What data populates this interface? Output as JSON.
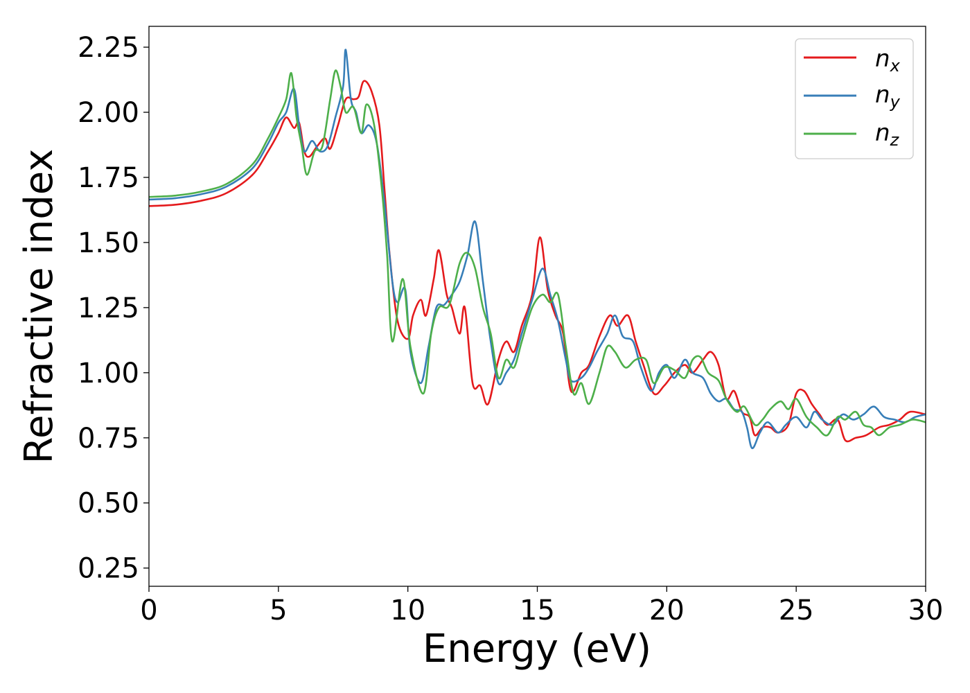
{
  "chart_data": {
    "type": "line",
    "title": "",
    "xlabel": "Energy (eV)",
    "ylabel": "Refractive index",
    "xlim": [
      0,
      30
    ],
    "ylim": [
      0.18,
      2.33
    ],
    "xticks": [
      0,
      5,
      10,
      15,
      20,
      25,
      30
    ],
    "xtick_labels": [
      "0",
      "5",
      "10",
      "15",
      "20",
      "25",
      "30"
    ],
    "yticks": [
      0.25,
      0.5,
      0.75,
      1.0,
      1.25,
      1.5,
      1.75,
      2.0,
      2.25
    ],
    "ytick_labels": [
      "0.25",
      "0.50",
      "0.75",
      "1.00",
      "1.25",
      "1.50",
      "1.75",
      "2.00",
      "2.25"
    ],
    "grid": false,
    "legend_position": "top-right",
    "series": [
      {
        "name": "n",
        "subscript": "x",
        "color": "#e41a1c",
        "points": [
          [
            0,
            1.64
          ],
          [
            1,
            1.645
          ],
          [
            2,
            1.66
          ],
          [
            3,
            1.69
          ],
          [
            4,
            1.76
          ],
          [
            4.6,
            1.85
          ],
          [
            5,
            1.92
          ],
          [
            5.3,
            1.98
          ],
          [
            5.6,
            1.94
          ],
          [
            5.8,
            1.96
          ],
          [
            6.0,
            1.85
          ],
          [
            6.2,
            1.83
          ],
          [
            6.5,
            1.87
          ],
          [
            6.8,
            1.9
          ],
          [
            7.0,
            1.86
          ],
          [
            7.3,
            1.95
          ],
          [
            7.6,
            2.05
          ],
          [
            7.9,
            2.05
          ],
          [
            8.1,
            2.06
          ],
          [
            8.3,
            2.12
          ],
          [
            8.6,
            2.08
          ],
          [
            8.9,
            1.95
          ],
          [
            9.1,
            1.7
          ],
          [
            9.3,
            1.45
          ],
          [
            9.6,
            1.2
          ],
          [
            10.0,
            1.13
          ],
          [
            10.2,
            1.22
          ],
          [
            10.5,
            1.28
          ],
          [
            10.7,
            1.22
          ],
          [
            11.0,
            1.36
          ],
          [
            11.2,
            1.47
          ],
          [
            11.5,
            1.3
          ],
          [
            11.7,
            1.25
          ],
          [
            12.0,
            1.15
          ],
          [
            12.2,
            1.25
          ],
          [
            12.5,
            0.96
          ],
          [
            12.8,
            0.95
          ],
          [
            13.1,
            0.88
          ],
          [
            13.5,
            1.05
          ],
          [
            13.8,
            1.12
          ],
          [
            14.1,
            1.08
          ],
          [
            14.4,
            1.18
          ],
          [
            14.8,
            1.3
          ],
          [
            15.1,
            1.52
          ],
          [
            15.4,
            1.32
          ],
          [
            15.7,
            1.22
          ],
          [
            16.0,
            1.15
          ],
          [
            16.3,
            0.93
          ],
          [
            16.7,
            1.0
          ],
          [
            17.0,
            1.03
          ],
          [
            17.4,
            1.14
          ],
          [
            17.8,
            1.22
          ],
          [
            18.1,
            1.18
          ],
          [
            18.5,
            1.22
          ],
          [
            18.8,
            1.12
          ],
          [
            19.1,
            1.03
          ],
          [
            19.5,
            0.92
          ],
          [
            19.9,
            0.95
          ],
          [
            20.3,
            1.0
          ],
          [
            20.7,
            1.03
          ],
          [
            21.0,
            1.0
          ],
          [
            21.4,
            1.05
          ],
          [
            21.7,
            1.08
          ],
          [
            22.0,
            1.03
          ],
          [
            22.3,
            0.9
          ],
          [
            22.6,
            0.93
          ],
          [
            22.9,
            0.85
          ],
          [
            23.2,
            0.83
          ],
          [
            23.4,
            0.76
          ],
          [
            23.7,
            0.79
          ],
          [
            24.0,
            0.79
          ],
          [
            24.3,
            0.77
          ],
          [
            24.7,
            0.8
          ],
          [
            25.0,
            0.92
          ],
          [
            25.3,
            0.93
          ],
          [
            25.6,
            0.88
          ],
          [
            25.9,
            0.84
          ],
          [
            26.2,
            0.8
          ],
          [
            26.6,
            0.82
          ],
          [
            26.9,
            0.74
          ],
          [
            27.3,
            0.75
          ],
          [
            27.7,
            0.76
          ],
          [
            28.2,
            0.79
          ],
          [
            28.6,
            0.8
          ],
          [
            29.0,
            0.82
          ],
          [
            29.4,
            0.85
          ],
          [
            30,
            0.84
          ]
        ]
      },
      {
        "name": "n",
        "subscript": "y",
        "color": "#377eb8",
        "points": [
          [
            0,
            1.665
          ],
          [
            1,
            1.67
          ],
          [
            2,
            1.685
          ],
          [
            3,
            1.715
          ],
          [
            4,
            1.785
          ],
          [
            4.6,
            1.88
          ],
          [
            5,
            1.96
          ],
          [
            5.3,
            2.0
          ],
          [
            5.6,
            2.09
          ],
          [
            5.8,
            1.95
          ],
          [
            6.0,
            1.85
          ],
          [
            6.3,
            1.89
          ],
          [
            6.6,
            1.85
          ],
          [
            6.9,
            1.87
          ],
          [
            7.2,
            1.98
          ],
          [
            7.5,
            2.1
          ],
          [
            7.6,
            2.24
          ],
          [
            7.8,
            2.05
          ],
          [
            8.0,
            2.0
          ],
          [
            8.2,
            1.92
          ],
          [
            8.5,
            1.95
          ],
          [
            8.8,
            1.88
          ],
          [
            9.1,
            1.65
          ],
          [
            9.4,
            1.35
          ],
          [
            9.6,
            1.27
          ],
          [
            9.9,
            1.32
          ],
          [
            10.1,
            1.08
          ],
          [
            10.5,
            0.96
          ],
          [
            10.8,
            1.1
          ],
          [
            11.1,
            1.25
          ],
          [
            11.4,
            1.26
          ],
          [
            11.7,
            1.3
          ],
          [
            12.0,
            1.35
          ],
          [
            12.3,
            1.45
          ],
          [
            12.6,
            1.58
          ],
          [
            12.9,
            1.35
          ],
          [
            13.2,
            1.12
          ],
          [
            13.5,
            0.96
          ],
          [
            13.8,
            1.0
          ],
          [
            14.1,
            1.05
          ],
          [
            14.4,
            1.15
          ],
          [
            14.8,
            1.28
          ],
          [
            15.2,
            1.4
          ],
          [
            15.5,
            1.3
          ],
          [
            15.8,
            1.2
          ],
          [
            16.1,
            1.05
          ],
          [
            16.3,
            0.97
          ],
          [
            16.7,
            0.98
          ],
          [
            17.0,
            1.02
          ],
          [
            17.3,
            1.08
          ],
          [
            17.7,
            1.15
          ],
          [
            18.0,
            1.22
          ],
          [
            18.3,
            1.14
          ],
          [
            18.7,
            1.12
          ],
          [
            19.0,
            1.02
          ],
          [
            19.4,
            0.93
          ],
          [
            19.7,
            1.0
          ],
          [
            20.0,
            1.03
          ],
          [
            20.3,
            0.98
          ],
          [
            20.7,
            1.05
          ],
          [
            21.0,
            1.0
          ],
          [
            21.4,
            0.98
          ],
          [
            21.7,
            0.92
          ],
          [
            22.0,
            0.89
          ],
          [
            22.3,
            0.9
          ],
          [
            22.6,
            0.86
          ],
          [
            22.9,
            0.85
          ],
          [
            23.1,
            0.79
          ],
          [
            23.3,
            0.71
          ],
          [
            23.6,
            0.77
          ],
          [
            23.9,
            0.81
          ],
          [
            24.3,
            0.77
          ],
          [
            24.6,
            0.8
          ],
          [
            25.0,
            0.83
          ],
          [
            25.4,
            0.79
          ],
          [
            25.7,
            0.85
          ],
          [
            26.0,
            0.82
          ],
          [
            26.4,
            0.8
          ],
          [
            26.8,
            0.84
          ],
          [
            27.2,
            0.82
          ],
          [
            27.6,
            0.84
          ],
          [
            28.0,
            0.87
          ],
          [
            28.4,
            0.83
          ],
          [
            28.8,
            0.82
          ],
          [
            29.2,
            0.81
          ],
          [
            29.6,
            0.83
          ],
          [
            30,
            0.84
          ]
        ]
      },
      {
        "name": "n",
        "subscript": "z",
        "color": "#4daf4a",
        "points": [
          [
            0,
            1.675
          ],
          [
            1,
            1.68
          ],
          [
            2,
            1.695
          ],
          [
            3,
            1.725
          ],
          [
            4,
            1.8
          ],
          [
            4.6,
            1.9
          ],
          [
            5,
            1.98
          ],
          [
            5.3,
            2.05
          ],
          [
            5.5,
            2.15
          ],
          [
            5.7,
            1.98
          ],
          [
            5.9,
            1.87
          ],
          [
            6.1,
            1.76
          ],
          [
            6.4,
            1.85
          ],
          [
            6.7,
            1.87
          ],
          [
            7.0,
            2.05
          ],
          [
            7.2,
            2.16
          ],
          [
            7.4,
            2.1
          ],
          [
            7.6,
            2.0
          ],
          [
            7.9,
            2.02
          ],
          [
            8.2,
            1.92
          ],
          [
            8.4,
            2.03
          ],
          [
            8.7,
            1.95
          ],
          [
            9.0,
            1.7
          ],
          [
            9.2,
            1.45
          ],
          [
            9.4,
            1.12
          ],
          [
            9.8,
            1.36
          ],
          [
            10.1,
            1.1
          ],
          [
            10.6,
            0.92
          ],
          [
            10.9,
            1.15
          ],
          [
            11.2,
            1.25
          ],
          [
            11.6,
            1.26
          ],
          [
            12.0,
            1.42
          ],
          [
            12.3,
            1.46
          ],
          [
            12.6,
            1.4
          ],
          [
            12.9,
            1.25
          ],
          [
            13.2,
            1.15
          ],
          [
            13.5,
            0.98
          ],
          [
            13.8,
            1.05
          ],
          [
            14.1,
            1.02
          ],
          [
            14.4,
            1.12
          ],
          [
            14.8,
            1.25
          ],
          [
            15.2,
            1.3
          ],
          [
            15.5,
            1.27
          ],
          [
            15.8,
            1.3
          ],
          [
            16.1,
            1.1
          ],
          [
            16.4,
            0.92
          ],
          [
            16.7,
            0.96
          ],
          [
            17.0,
            0.88
          ],
          [
            17.4,
            1.0
          ],
          [
            17.7,
            1.1
          ],
          [
            18.0,
            1.08
          ],
          [
            18.4,
            1.02
          ],
          [
            18.8,
            1.05
          ],
          [
            19.2,
            1.05
          ],
          [
            19.5,
            0.96
          ],
          [
            19.9,
            1.02
          ],
          [
            20.3,
            1.01
          ],
          [
            20.7,
            0.98
          ],
          [
            21.0,
            1.05
          ],
          [
            21.3,
            1.06
          ],
          [
            21.6,
            1.0
          ],
          [
            22.0,
            0.97
          ],
          [
            22.3,
            0.9
          ],
          [
            22.7,
            0.85
          ],
          [
            23.0,
            0.87
          ],
          [
            23.4,
            0.8
          ],
          [
            23.7,
            0.82
          ],
          [
            24.0,
            0.86
          ],
          [
            24.4,
            0.89
          ],
          [
            24.7,
            0.86
          ],
          [
            25.0,
            0.9
          ],
          [
            25.4,
            0.83
          ],
          [
            25.8,
            0.79
          ],
          [
            26.2,
            0.76
          ],
          [
            26.6,
            0.83
          ],
          [
            26.9,
            0.82
          ],
          [
            27.3,
            0.85
          ],
          [
            27.6,
            0.8
          ],
          [
            27.9,
            0.79
          ],
          [
            28.2,
            0.76
          ],
          [
            28.6,
            0.79
          ],
          [
            29.0,
            0.8
          ],
          [
            29.5,
            0.82
          ],
          [
            30,
            0.81
          ]
        ]
      }
    ]
  }
}
